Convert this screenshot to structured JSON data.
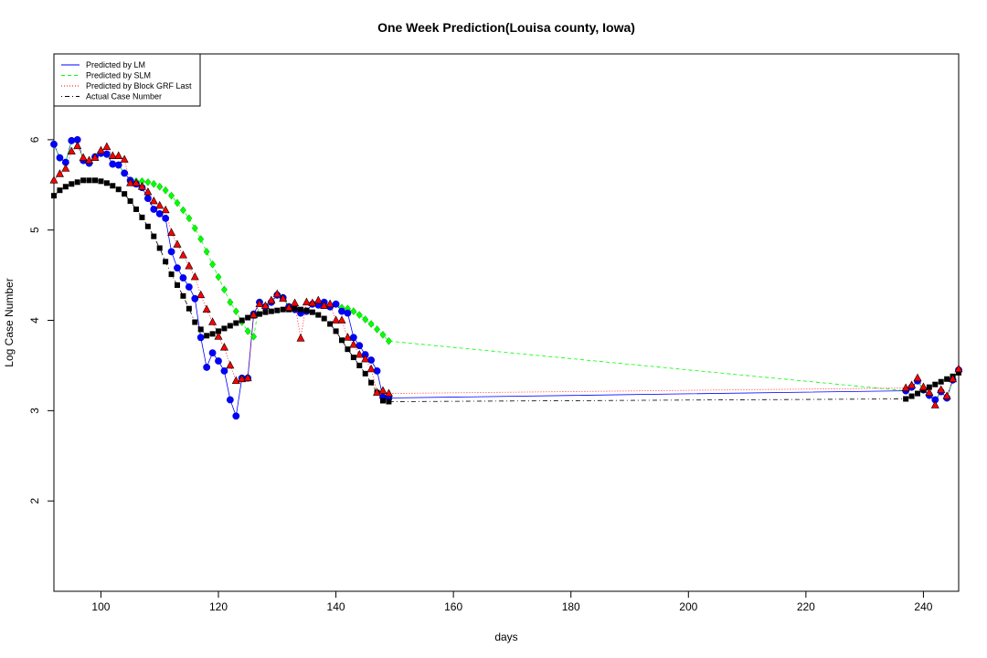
{
  "chart_data": {
    "type": "line",
    "title": "One Week Prediction(Louisa county, Iowa)",
    "xlabel": "days",
    "ylabel": "Log Case Number",
    "xlim": [
      92,
      246
    ],
    "ylim": [
      1.0,
      6.95
    ],
    "x_ticks": [
      100,
      120,
      140,
      160,
      180,
      200,
      220,
      240
    ],
    "y_ticks": [
      2,
      3,
      4,
      5,
      6
    ],
    "grid": false,
    "legend_position": "top-left",
    "legend": [
      {
        "label": "Predicted by LM",
        "color": "#0000ff",
        "dash": "solid",
        "series": "lm"
      },
      {
        "label": "Predicted by SLM",
        "color": "#00ff00",
        "dash": "dashed",
        "series": "slm"
      },
      {
        "label": "Predicted by Block GRF Last",
        "color": "#ff0000",
        "dash": "dotted",
        "series": "grf"
      },
      {
        "label": "Actual Case Number",
        "color": "#000000",
        "dash": "dotdash",
        "series": "actual"
      }
    ],
    "series": [
      {
        "name": "Predicted by LM",
        "key": "lm",
        "color": "#0000ff",
        "marker": "circle",
        "x": [
          92,
          93,
          94,
          95,
          96,
          97,
          98,
          99,
          100,
          101,
          102,
          103,
          104,
          105,
          106,
          107,
          108,
          109,
          110,
          111,
          112,
          113,
          114,
          115,
          116,
          117,
          118,
          119,
          120,
          121,
          122,
          123,
          124,
          125,
          126,
          127,
          128,
          129,
          130,
          131,
          132,
          133,
          134,
          135,
          136,
          137,
          138,
          139,
          140,
          141,
          142,
          143,
          144,
          145,
          146,
          147,
          148,
          149,
          237,
          238,
          239,
          240,
          241,
          242,
          243,
          244,
          245,
          246
        ],
        "y": [
          5.95,
          5.8,
          5.75,
          5.99,
          6.0,
          5.77,
          5.74,
          5.81,
          5.85,
          5.84,
          5.73,
          5.72,
          5.63,
          5.55,
          5.51,
          5.47,
          5.35,
          5.23,
          5.18,
          5.13,
          4.76,
          4.58,
          4.47,
          4.37,
          4.24,
          3.81,
          3.48,
          3.64,
          3.55,
          3.44,
          3.12,
          2.94,
          3.36,
          3.36,
          4.07,
          4.2,
          4.15,
          4.2,
          4.28,
          4.25,
          4.15,
          4.12,
          4.08,
          4.1,
          4.18,
          4.17,
          4.2,
          4.15,
          4.18,
          4.1,
          4.08,
          3.81,
          3.72,
          3.62,
          3.56,
          3.44,
          3.15,
          3.14,
          3.22,
          3.26,
          3.33,
          3.23,
          3.17,
          3.12,
          3.21,
          3.14,
          3.34,
          3.45
        ]
      },
      {
        "name": "Predicted by SLM",
        "key": "slm",
        "color": "#00ff00",
        "marker": "diamond",
        "x": [
          92,
          93,
          94,
          95,
          96,
          97,
          98,
          99,
          100,
          101,
          102,
          103,
          104,
          105,
          106,
          107,
          108,
          109,
          110,
          111,
          112,
          113,
          114,
          115,
          116,
          117,
          118,
          119,
          120,
          121,
          122,
          123,
          124,
          125,
          126,
          127,
          128,
          129,
          130,
          131,
          132,
          133,
          134,
          135,
          136,
          137,
          138,
          139,
          140,
          141,
          142,
          143,
          144,
          145,
          146,
          147,
          148,
          149,
          237,
          238,
          239,
          240,
          241,
          242,
          243,
          244,
          245,
          246
        ],
        "y": [
          5.95,
          5.8,
          5.75,
          5.99,
          6.0,
          5.77,
          5.74,
          5.81,
          5.85,
          5.84,
          5.73,
          5.72,
          5.63,
          5.55,
          5.54,
          5.54,
          5.53,
          5.51,
          5.48,
          5.44,
          5.38,
          5.3,
          5.22,
          5.13,
          5.02,
          4.9,
          4.76,
          4.62,
          4.48,
          4.34,
          4.2,
          4.1,
          3.98,
          3.88,
          3.82,
          4.2,
          4.15,
          4.2,
          4.28,
          4.25,
          4.15,
          4.12,
          4.08,
          4.1,
          4.18,
          4.17,
          4.2,
          4.15,
          4.18,
          4.14,
          4.13,
          4.1,
          4.06,
          4.01,
          3.96,
          3.9,
          3.84,
          3.77,
          3.22,
          3.26,
          3.33,
          3.23,
          3.17,
          3.12,
          3.21,
          3.14,
          3.34,
          3.45
        ]
      },
      {
        "name": "Predicted by Block GRF Last",
        "key": "grf",
        "color": "#ff0000",
        "marker": "triangle",
        "x": [
          92,
          93,
          94,
          95,
          96,
          97,
          98,
          99,
          100,
          101,
          102,
          103,
          104,
          105,
          106,
          107,
          108,
          109,
          110,
          111,
          112,
          113,
          114,
          115,
          116,
          117,
          118,
          119,
          120,
          121,
          122,
          123,
          124,
          125,
          126,
          127,
          128,
          129,
          130,
          131,
          132,
          133,
          134,
          135,
          136,
          137,
          138,
          139,
          140,
          141,
          142,
          143,
          144,
          145,
          146,
          147,
          148,
          149,
          237,
          238,
          239,
          240,
          241,
          242,
          243,
          244,
          245,
          246
        ],
        "y": [
          5.55,
          5.62,
          5.68,
          5.87,
          5.93,
          5.8,
          5.77,
          5.8,
          5.88,
          5.92,
          5.82,
          5.82,
          5.78,
          5.52,
          5.52,
          5.48,
          5.42,
          5.32,
          5.27,
          5.22,
          4.97,
          4.84,
          4.72,
          4.6,
          4.48,
          4.28,
          4.12,
          3.98,
          3.82,
          3.7,
          3.5,
          3.33,
          3.35,
          3.36,
          4.06,
          4.18,
          4.16,
          4.22,
          4.29,
          4.24,
          4.14,
          4.19,
          3.8,
          4.2,
          4.19,
          4.22,
          4.16,
          4.18,
          4.0,
          4.0,
          3.81,
          3.73,
          3.62,
          3.57,
          3.46,
          3.2,
          3.22,
          3.19,
          3.25,
          3.28,
          3.36,
          3.26,
          3.2,
          3.06,
          3.23,
          3.16,
          3.35,
          3.46
        ]
      },
      {
        "name": "Actual Case Number",
        "key": "actual",
        "color": "#000000",
        "marker": "square",
        "x": [
          92,
          93,
          94,
          95,
          96,
          97,
          98,
          99,
          100,
          101,
          102,
          103,
          104,
          105,
          106,
          107,
          108,
          109,
          110,
          111,
          112,
          113,
          114,
          115,
          116,
          117,
          118,
          119,
          120,
          121,
          122,
          123,
          124,
          125,
          126,
          127,
          128,
          129,
          130,
          131,
          132,
          133,
          134,
          135,
          136,
          137,
          138,
          139,
          140,
          141,
          142,
          143,
          144,
          145,
          146,
          147,
          148,
          149,
          237,
          238,
          239,
          240,
          241,
          242,
          243,
          244,
          245,
          246
        ],
        "y": [
          5.38,
          5.44,
          5.48,
          5.51,
          5.53,
          5.55,
          5.55,
          5.55,
          5.54,
          5.52,
          5.49,
          5.45,
          5.4,
          5.32,
          5.23,
          5.14,
          5.04,
          4.93,
          4.8,
          4.65,
          4.51,
          4.39,
          4.27,
          4.13,
          3.98,
          3.9,
          3.83,
          3.85,
          3.88,
          3.91,
          3.94,
          3.97,
          4.0,
          4.03,
          4.05,
          4.07,
          4.09,
          4.1,
          4.11,
          4.12,
          4.12,
          4.13,
          4.12,
          4.11,
          4.09,
          4.06,
          4.02,
          3.96,
          3.88,
          3.78,
          3.68,
          3.59,
          3.5,
          3.41,
          3.31,
          3.2,
          3.11,
          3.1,
          3.13,
          3.16,
          3.19,
          3.23,
          3.26,
          3.29,
          3.32,
          3.35,
          3.38,
          3.42
        ]
      }
    ]
  }
}
